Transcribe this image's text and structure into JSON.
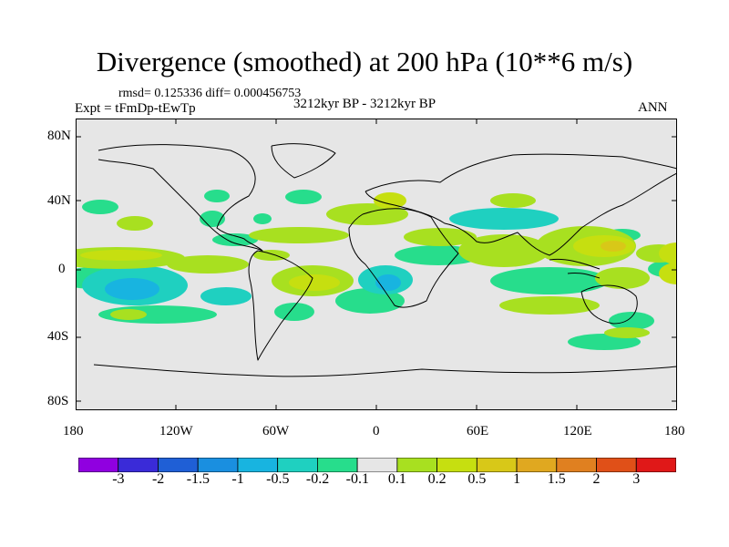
{
  "title": "Divergence (smoothed) at 200 hPa (10**6 m/s)",
  "stats": "rmsd= 0.125336 diff= 0.000456753",
  "experiment": "Expt = tFmDp-tEwTp",
  "period": "3212kyr BP - 3212kyr BP",
  "season": "ANN",
  "lat_labels": [
    "80N",
    "40N",
    "0",
    "40S",
    "80S"
  ],
  "lon_labels": [
    "180",
    "120W",
    "60W",
    "0",
    "60E",
    "120E",
    "180"
  ],
  "colorbar": {
    "colors": [
      "#9000e0",
      "#3a2bd8",
      "#1f5fd6",
      "#1a8fe0",
      "#18b4e0",
      "#1fd0c0",
      "#27dd8c",
      "#e6e6e6",
      "#a8e020",
      "#c6df10",
      "#d8c818",
      "#e0a820",
      "#e08020",
      "#e05018",
      "#e01818"
    ],
    "labels": [
      "-3",
      "-2",
      "-1.5",
      "-1",
      "-0.5",
      "-0.2",
      "-0.1",
      "0.1",
      "0.2",
      "0.5",
      "1",
      "1.5",
      "2",
      "3"
    ]
  }
}
